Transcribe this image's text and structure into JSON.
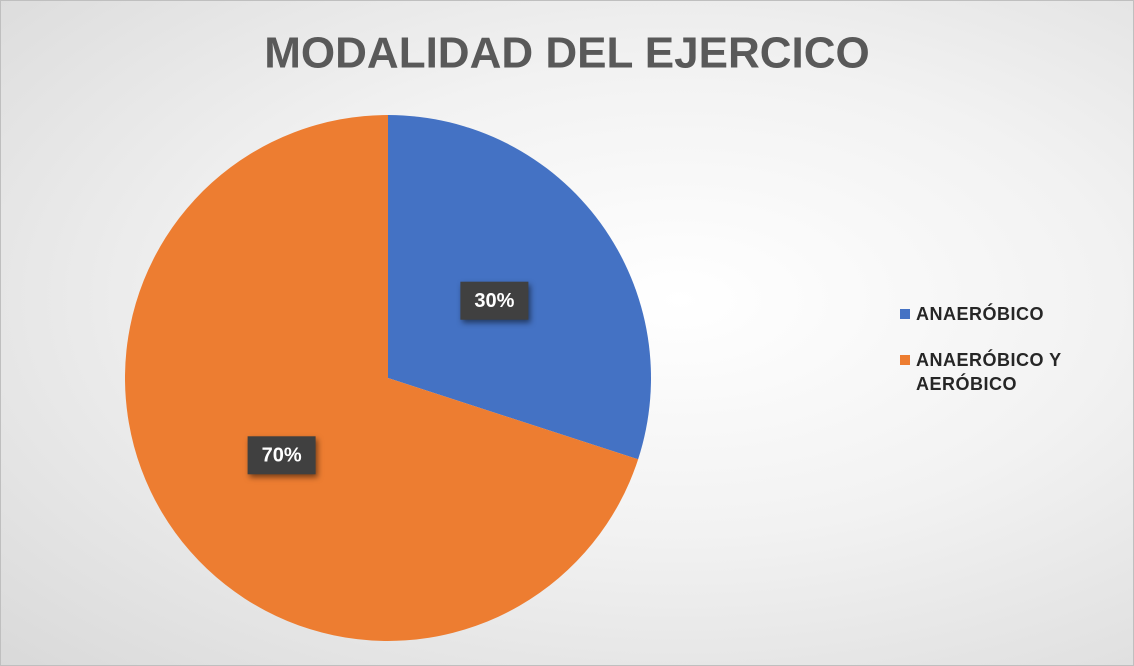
{
  "chart_data": {
    "type": "pie",
    "title": "MODALIDAD DEL EJERCICO",
    "categories": [
      "ANAERÓBICO",
      "ANAERÓBICO Y AERÓBICO"
    ],
    "values": [
      30,
      70
    ],
    "value_labels": [
      "30%",
      "70%"
    ],
    "colors": [
      "#4472c4",
      "#ed7d31"
    ],
    "legend": "right"
  }
}
